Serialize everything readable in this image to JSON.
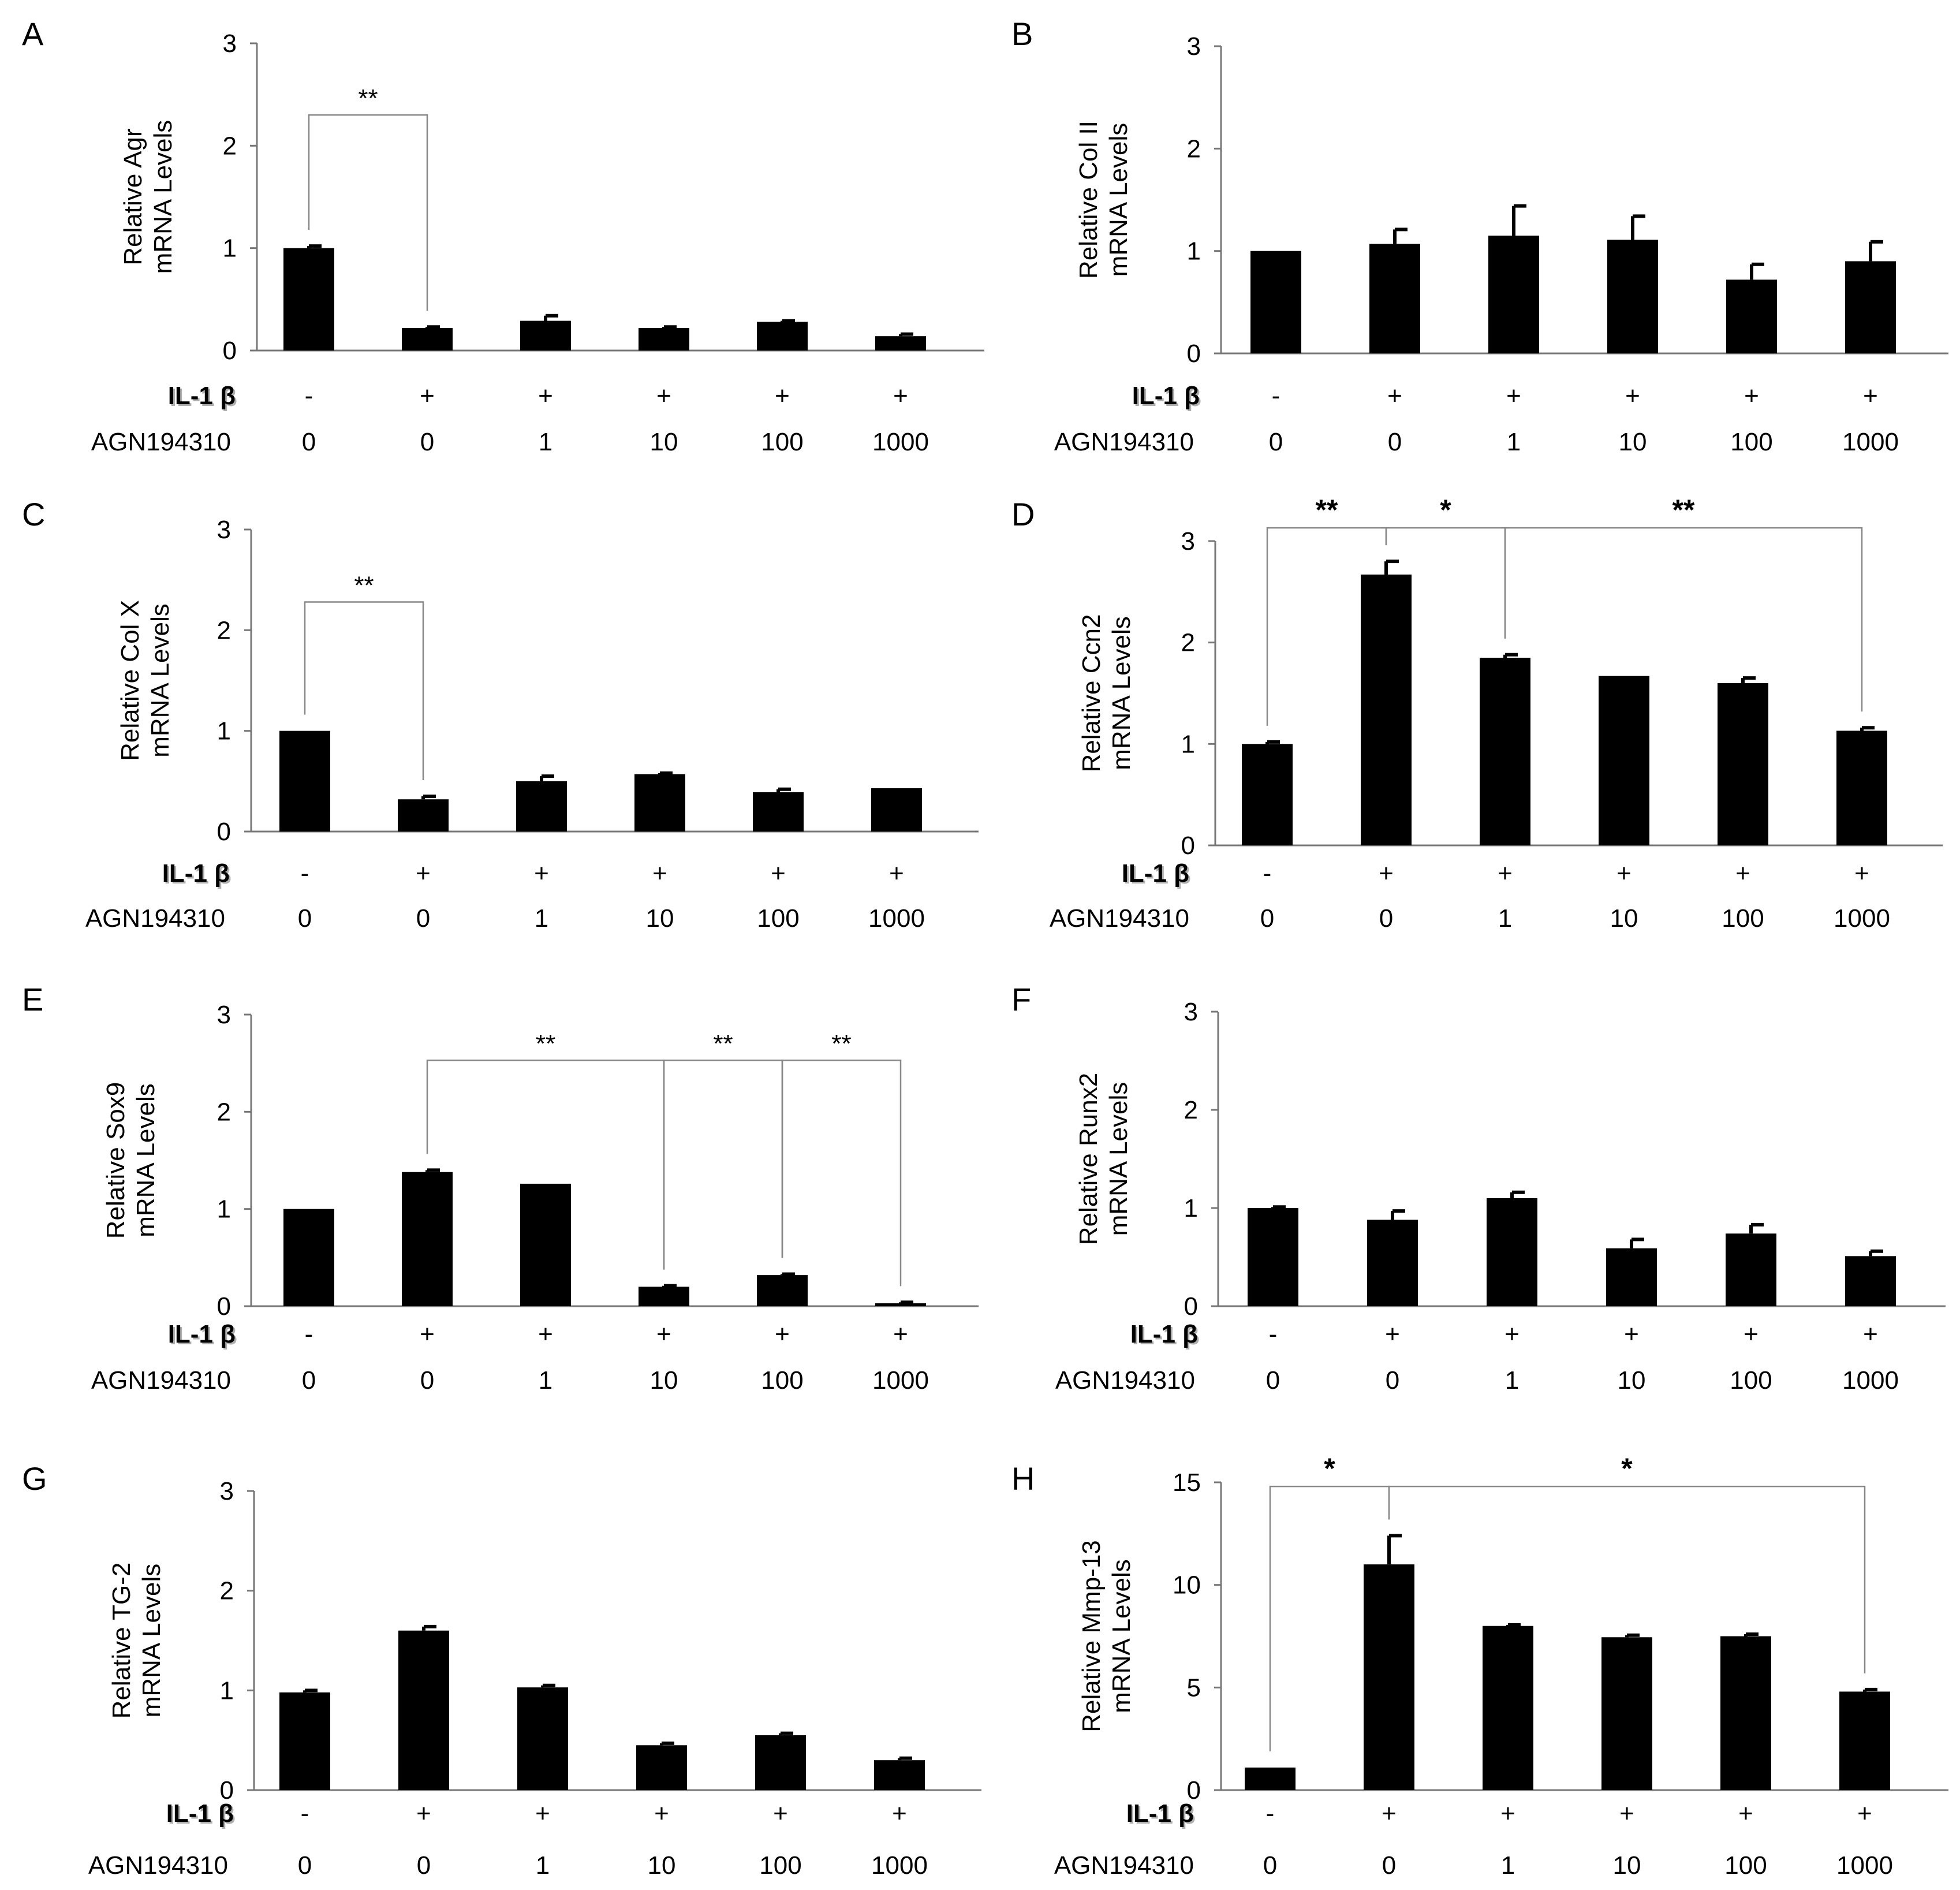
{
  "figure": {
    "row_labels": {
      "il1b": "IL-1 β",
      "agn": "AGN194310"
    },
    "colors": {
      "bar": "#000000",
      "axis": "#777777",
      "bracket": "#888888",
      "il1b_shadow": "#b0b0b0"
    }
  },
  "chart_data": [
    {
      "type": "bar",
      "panel": "A",
      "title": "",
      "ylabel_lines": [
        "Relative Agr",
        "mRNA Levels"
      ],
      "ylim": [
        0,
        3
      ],
      "yticks": [
        0,
        1,
        2,
        3
      ],
      "il1b": [
        "-",
        "+",
        "+",
        "+",
        "+",
        "+"
      ],
      "categories": [
        "0",
        "0",
        "1",
        "10",
        "100",
        "1000"
      ],
      "values": [
        1.0,
        0.22,
        0.29,
        0.22,
        0.28,
        0.14
      ],
      "errors": [
        0.02,
        0.01,
        0.05,
        0.01,
        0.01,
        0.02
      ],
      "annotations": [
        {
          "from": 0,
          "to": 1,
          "label": "**",
          "level": 2.3
        }
      ]
    },
    {
      "type": "bar",
      "panel": "B",
      "title": "",
      "ylabel_lines": [
        "Relative Col II",
        "mRNA Levels"
      ],
      "ylim": [
        0,
        3
      ],
      "yticks": [
        0,
        1,
        2,
        3
      ],
      "il1b": [
        "-",
        "+",
        "+",
        "+",
        "+",
        "+"
      ],
      "categories": [
        "0",
        "0",
        "1",
        "10",
        "100",
        "1000"
      ],
      "values": [
        1.0,
        1.07,
        1.15,
        1.11,
        0.72,
        0.9
      ],
      "errors": [
        0.0,
        0.14,
        0.29,
        0.23,
        0.15,
        0.19
      ],
      "annotations": []
    },
    {
      "type": "bar",
      "panel": "C",
      "title": "",
      "ylabel_lines": [
        "Relative Col X",
        "mRNA Levels"
      ],
      "ylim": [
        0,
        3
      ],
      "yticks": [
        0,
        1,
        2,
        3
      ],
      "il1b": [
        "-",
        "+",
        "+",
        "+",
        "+",
        "+"
      ],
      "categories": [
        "0",
        "0",
        "1",
        "10",
        "100",
        "1000"
      ],
      "values": [
        1.0,
        0.32,
        0.5,
        0.57,
        0.39,
        0.43
      ],
      "errors": [
        0.0,
        0.03,
        0.05,
        0.01,
        0.03,
        0.0
      ],
      "annotations": [
        {
          "from": 0,
          "to": 1,
          "label": "**",
          "level": 2.28
        }
      ]
    },
    {
      "type": "bar",
      "panel": "D",
      "title": "",
      "ylabel_lines": [
        "Relative Ccn2",
        "mRNA Levels"
      ],
      "ylim": [
        0,
        3
      ],
      "yticks": [
        0,
        1,
        2,
        3
      ],
      "il1b": [
        "-",
        "+",
        "+",
        "+",
        "+",
        "+"
      ],
      "categories": [
        "0",
        "0",
        "1",
        "10",
        "100",
        "1000"
      ],
      "values": [
        1.0,
        2.67,
        1.85,
        1.67,
        1.6,
        1.13
      ],
      "errors": [
        0.02,
        0.13,
        0.03,
        0.0,
        0.05,
        0.03
      ],
      "annotations": [
        {
          "from": 0,
          "to": 1,
          "label": "**",
          "level": 3.13
        },
        {
          "from": 1,
          "to": 2,
          "label": "*",
          "level": 3.13
        },
        {
          "from": 2,
          "to": 5,
          "label": "**",
          "level": 3.13
        }
      ]
    },
    {
      "type": "bar",
      "panel": "E",
      "title": "",
      "ylabel_lines": [
        "Relative Sox9",
        "mRNA Levels"
      ],
      "ylim": [
        0,
        3
      ],
      "yticks": [
        0,
        1,
        2,
        3
      ],
      "il1b": [
        "-",
        "+",
        "+",
        "+",
        "+",
        "+"
      ],
      "categories": [
        "0",
        "0",
        "1",
        "10",
        "100",
        "1000"
      ],
      "values": [
        1.0,
        1.38,
        1.26,
        0.2,
        0.32,
        0.03
      ],
      "errors": [
        0.0,
        0.02,
        0.0,
        0.01,
        0.01,
        0.01
      ],
      "annotations": [
        {
          "from": 1,
          "to": 3,
          "label": "**",
          "level": 2.53
        },
        {
          "from": 3,
          "to": 4,
          "label": "**",
          "level": 2.53
        },
        {
          "from": 4,
          "to": 5,
          "label": "**",
          "level": 2.53
        }
      ]
    },
    {
      "type": "bar",
      "panel": "F",
      "title": "",
      "ylabel_lines": [
        "Relative Runx2",
        "mRNA Levels"
      ],
      "ylim": [
        0,
        3
      ],
      "yticks": [
        0,
        1,
        2,
        3
      ],
      "il1b": [
        "-",
        "+",
        "+",
        "+",
        "+",
        "+"
      ],
      "categories": [
        "0",
        "0",
        "1",
        "10",
        "100",
        "1000"
      ],
      "values": [
        1.0,
        0.88,
        1.1,
        0.59,
        0.74,
        0.51
      ],
      "errors": [
        0.01,
        0.09,
        0.06,
        0.09,
        0.09,
        0.05
      ],
      "annotations": []
    },
    {
      "type": "bar",
      "panel": "G",
      "title": "",
      "ylabel_lines": [
        "Relative TG-2",
        "mRNA Levels"
      ],
      "ylim": [
        0,
        3
      ],
      "yticks": [
        0,
        1,
        2,
        3
      ],
      "il1b": [
        "-",
        "+",
        "+",
        "+",
        "+",
        "+"
      ],
      "categories": [
        "0",
        "0",
        "1",
        "10",
        "100",
        "1000"
      ],
      "values": [
        0.98,
        1.6,
        1.03,
        0.45,
        0.55,
        0.3
      ],
      "errors": [
        0.02,
        0.04,
        0.02,
        0.02,
        0.02,
        0.02
      ],
      "annotations": []
    },
    {
      "type": "bar",
      "panel": "H",
      "title": "",
      "ylabel_lines": [
        "Relative Mmp-13",
        "mRNA Levels"
      ],
      "ylim": [
        0,
        15
      ],
      "yticks": [
        0,
        5,
        10,
        15
      ],
      "il1b": [
        "-",
        "+",
        "+",
        "+",
        "+",
        "+"
      ],
      "categories": [
        "0",
        "0",
        "1",
        "10",
        "100",
        "1000"
      ],
      "values": [
        1.1,
        11.0,
        8.0,
        7.45,
        7.5,
        4.8
      ],
      "errors": [
        0.0,
        1.4,
        0.05,
        0.1,
        0.1,
        0.1
      ],
      "annotations": [
        {
          "from": 0,
          "to": 1,
          "label": "*",
          "level": 14.8
        },
        {
          "from": 1,
          "to": 5,
          "label": "*",
          "level": 14.8
        }
      ]
    }
  ]
}
